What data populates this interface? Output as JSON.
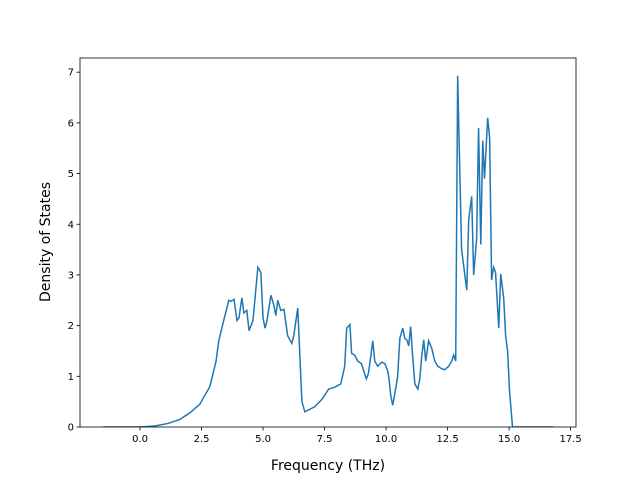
{
  "chart_data": {
    "type": "line",
    "xlabel": "Frequency (THz)",
    "ylabel": "Density of States",
    "x": [
      -1.5,
      0,
      0.6,
      1.14,
      1.62,
      2.03,
      2.43,
      2.84,
      3.09,
      3.2,
      3.4,
      3.61,
      3.7,
      3.82,
      3.94,
      4.02,
      4.14,
      4.22,
      4.34,
      4.43,
      4.59,
      4.79,
      4.91,
      5.0,
      5.08,
      5.16,
      5.32,
      5.44,
      5.52,
      5.6,
      5.72,
      5.85,
      6.0,
      6.17,
      6.25,
      6.41,
      6.58,
      6.7,
      7.1,
      7.4,
      7.67,
      7.9,
      8.16,
      8.32,
      8.4,
      8.53,
      8.6,
      8.72,
      8.85,
      9.0,
      9.13,
      9.2,
      9.28,
      9.38,
      9.46,
      9.54,
      9.66,
      9.83,
      9.95,
      10.07,
      10.12,
      10.19,
      10.27,
      10.39,
      10.47,
      10.56,
      10.68,
      10.76,
      10.84,
      10.92,
      11.0,
      11.08,
      11.17,
      11.29,
      11.37,
      11.45,
      11.53,
      11.61,
      11.73,
      11.86,
      11.98,
      12.1,
      12.26,
      12.38,
      12.55,
      12.67,
      12.75,
      12.83,
      12.91,
      12.99,
      13.07,
      13.15,
      13.28,
      13.36,
      13.48,
      13.56,
      13.68,
      13.76,
      13.85,
      13.93,
      14.0,
      14.13,
      14.21,
      14.29,
      14.37,
      14.45,
      14.58,
      14.66,
      14.78,
      14.86,
      14.94,
      15.02,
      15.14,
      15.3,
      16.8
    ],
    "values": [
      0,
      0,
      0.02,
      0.07,
      0.15,
      0.28,
      0.45,
      0.8,
      1.3,
      1.7,
      2.1,
      2.5,
      2.48,
      2.52,
      2.1,
      2.15,
      2.55,
      2.25,
      2.3,
      1.9,
      2.1,
      3.15,
      3.05,
      2.15,
      1.95,
      2.1,
      2.6,
      2.4,
      2.2,
      2.5,
      2.3,
      2.32,
      1.8,
      1.65,
      1.8,
      2.35,
      0.5,
      0.3,
      0.4,
      0.55,
      0.75,
      0.78,
      0.85,
      1.2,
      1.95,
      2.02,
      1.45,
      1.42,
      1.3,
      1.25,
      1.05,
      0.95,
      1.05,
      1.4,
      1.7,
      1.3,
      1.2,
      1.28,
      1.25,
      1.1,
      0.95,
      0.62,
      0.43,
      0.75,
      1.0,
      1.75,
      1.95,
      1.75,
      1.72,
      1.6,
      1.98,
      1.4,
      0.85,
      0.75,
      0.95,
      1.4,
      1.72,
      1.3,
      1.7,
      1.55,
      1.3,
      1.2,
      1.15,
      1.13,
      1.2,
      1.3,
      1.42,
      1.3,
      6.93,
      5.2,
      3.5,
      3.2,
      2.7,
      4.1,
      4.55,
      3.0,
      3.7,
      5.9,
      3.6,
      5.65,
      4.9,
      6.1,
      5.7,
      2.9,
      3.15,
      3.05,
      1.95,
      3.02,
      2.55,
      1.8,
      1.5,
      0.7,
      0,
      0,
      0
    ],
    "color": "#1f77b4",
    "xlim": [
      -2.44,
      17.72
    ],
    "ylim": [
      0,
      7.28
    ],
    "xticks": [
      {
        "value": 0,
        "label": "0.0"
      },
      2.5,
      {
        "value": 5,
        "label": "5.0"
      },
      7.5,
      {
        "value": 10,
        "label": "10.0"
      },
      12.5,
      {
        "value": 15,
        "label": "15.0"
      },
      17.5
    ],
    "yticks": [
      0,
      1,
      2,
      3,
      4,
      5,
      6,
      7
    ]
  }
}
